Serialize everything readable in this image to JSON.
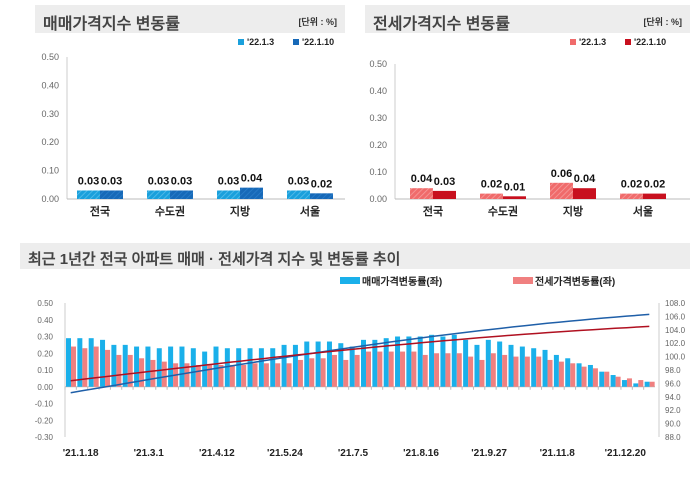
{
  "chart_data": [
    {
      "type": "bar",
      "title": "매매가격지수 변동률",
      "unit": "[단위 : %]",
      "categories": [
        "전국",
        "수도권",
        "지방",
        "서울"
      ],
      "series": [
        {
          "name": "'22.1.3",
          "values": [
            0.03,
            0.03,
            0.03,
            0.03
          ],
          "color": "#1aa0dc"
        },
        {
          "name": "'22.1.10",
          "values": [
            0.03,
            0.03,
            0.04,
            0.02
          ],
          "color": "#1769b8"
        }
      ],
      "ylim": [
        0,
        0.5
      ],
      "yticks": [
        "0.00",
        "0.10",
        "0.20",
        "0.30",
        "0.40",
        "0.50"
      ]
    },
    {
      "type": "bar",
      "title": "전세가격지수 변동률",
      "unit": "[단위 : %]",
      "categories": [
        "전국",
        "수도권",
        "지방",
        "서울"
      ],
      "series": [
        {
          "name": "'22.1.3",
          "values": [
            0.04,
            0.02,
            0.06,
            0.02
          ],
          "color": "#f06b6b"
        },
        {
          "name": "'22.1.10",
          "values": [
            0.03,
            0.01,
            0.04,
            0.02
          ],
          "color": "#c8101e"
        }
      ],
      "ylim": [
        0,
        0.5
      ],
      "yticks": [
        "0.00",
        "0.10",
        "0.20",
        "0.30",
        "0.40",
        "0.50"
      ]
    },
    {
      "type": "bar+line",
      "title": "최근 1년간 전국 아파트 매매 · 전세가격 지수 및 변동률 추이",
      "xticks": [
        "'21.1.18",
        "'21.3.1",
        "'21.4.12",
        "'21.5.24",
        "'21.7.5",
        "'21.8.16",
        "'21.9.27",
        "'21.11.8",
        "'21.12.20"
      ],
      "ylim": [
        -0.3,
        0.5
      ],
      "yticks": [
        "-0.30",
        "-0.20",
        "-0.10",
        "0.00",
        "0.10",
        "0.20",
        "0.30",
        "0.40",
        "0.50"
      ],
      "y2lim": [
        88,
        108
      ],
      "y2ticks": [
        "88.0",
        "90.0",
        "92.0",
        "94.0",
        "96.0",
        "98.0",
        "100.0",
        "102.0",
        "104.0",
        "106.0",
        "108.0"
      ],
      "series": [
        {
          "name": "매매가격변동률(좌)",
          "color": "#1ab0ea",
          "values": [
            0.29,
            0.29,
            0.29,
            0.28,
            0.25,
            0.25,
            0.24,
            0.24,
            0.23,
            0.24,
            0.24,
            0.23,
            0.21,
            0.24,
            0.23,
            0.23,
            0.23,
            0.23,
            0.23,
            0.25,
            0.25,
            0.27,
            0.27,
            0.27,
            0.26,
            0.24,
            0.28,
            0.28,
            0.29,
            0.3,
            0.3,
            0.3,
            0.31,
            0.3,
            0.31,
            0.28,
            0.25,
            0.28,
            0.27,
            0.25,
            0.24,
            0.23,
            0.22,
            0.19,
            0.17,
            0.14,
            0.13,
            0.09,
            0.07,
            0.04,
            0.02,
            0.03
          ]
        },
        {
          "name": "전세가격변동률(좌)",
          "color": "#f08080",
          "values": [
            0.24,
            0.23,
            0.24,
            0.22,
            0.19,
            0.19,
            0.17,
            0.16,
            0.15,
            0.14,
            0.14,
            0.13,
            0.13,
            0.13,
            0.13,
            0.13,
            0.14,
            0.14,
            0.14,
            0.14,
            0.16,
            0.17,
            0.17,
            0.19,
            0.16,
            0.19,
            0.21,
            0.21,
            0.21,
            0.21,
            0.21,
            0.19,
            0.2,
            0.2,
            0.2,
            0.18,
            0.16,
            0.2,
            0.19,
            0.18,
            0.18,
            0.18,
            0.16,
            0.15,
            0.14,
            0.12,
            0.11,
            0.09,
            0.06,
            0.05,
            0.04,
            0.03
          ]
        }
      ],
      "lines": [
        {
          "axis": "right",
          "color": "#1f5fa8",
          "start": 94.6,
          "end": 106.3
        },
        {
          "axis": "right",
          "color": "#b01020",
          "start": 96.4,
          "end": 104.5
        }
      ]
    }
  ]
}
